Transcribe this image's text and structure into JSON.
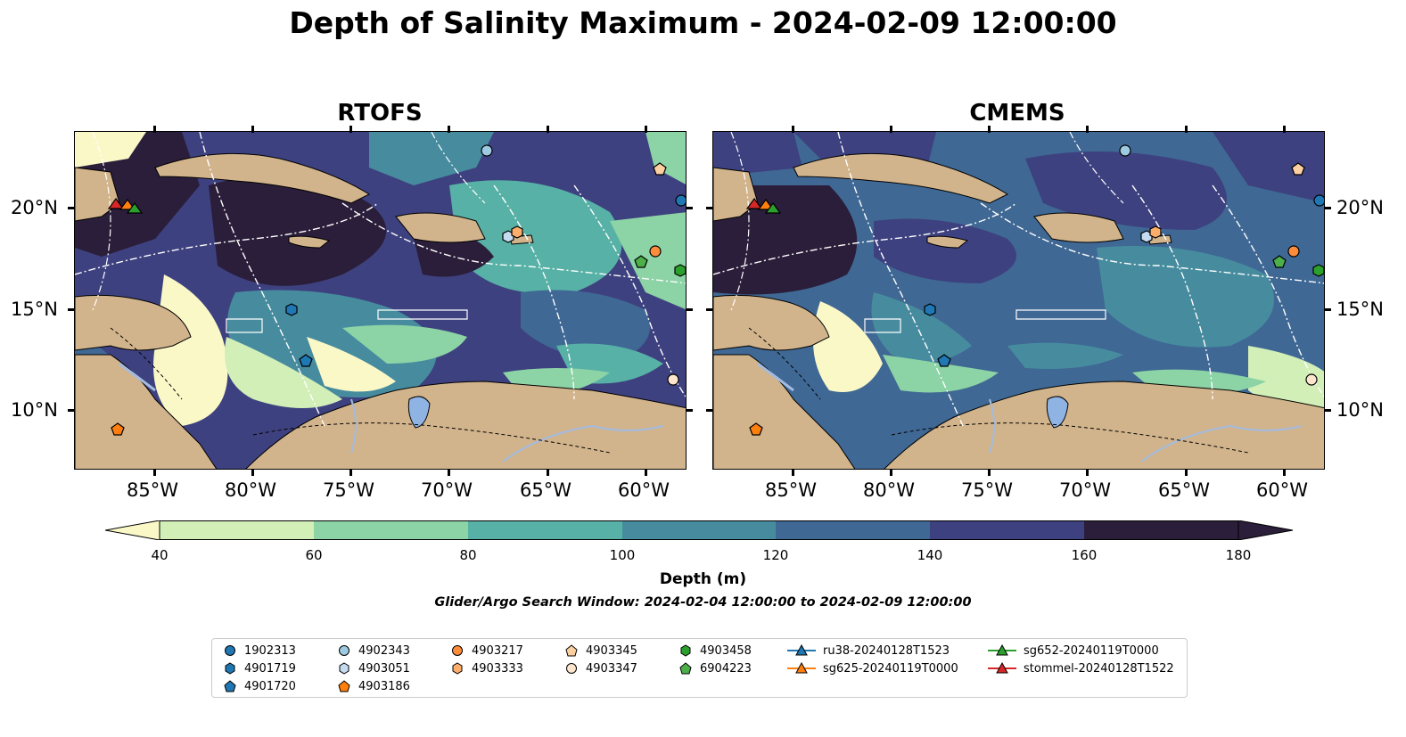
{
  "title": "Depth of Salinity Maximum - 2024-02-09 12:00:00",
  "panels": [
    {
      "title": "RTOFS"
    },
    {
      "title": "CMEMS"
    }
  ],
  "axes": {
    "lon_ticks": [
      "85°W",
      "80°W",
      "75°W",
      "70°W",
      "65°W",
      "60°W"
    ],
    "lat_ticks": [
      "20°N",
      "15°N",
      "10°N"
    ]
  },
  "colorbar": {
    "label": "Depth (m)",
    "ticks": [
      "40",
      "60",
      "80",
      "100",
      "120",
      "140",
      "160",
      "180"
    ],
    "colors": [
      "#fbf8c8",
      "#d2efb8",
      "#8cd3a6",
      "#57b1a6",
      "#468c9e",
      "#3f6894",
      "#3e417f",
      "#2a1e3a"
    ],
    "extend": "both"
  },
  "search_window": "Glider/Argo Search Window: 2024-02-04 12:00:00 to 2024-02-09 12:00:00",
  "legend": {
    "argo": [
      {
        "id": "1902313",
        "marker": "circle",
        "color": "#1f77b4"
      },
      {
        "id": "4901719",
        "marker": "hexagon",
        "color": "#1f77b4"
      },
      {
        "id": "4901720",
        "marker": "pentagon",
        "color": "#1f77b4"
      },
      {
        "id": "4902343",
        "marker": "circle",
        "color": "#9ecae1"
      },
      {
        "id": "4903051",
        "marker": "hexagon",
        "color": "#c6dbef"
      },
      {
        "id": "4903186",
        "marker": "pentagon",
        "color": "#ff7f0e"
      },
      {
        "id": "4903217",
        "marker": "circle",
        "color": "#fd8d3c"
      },
      {
        "id": "4903333",
        "marker": "hexagon",
        "color": "#fdae6b"
      },
      {
        "id": "4903345",
        "marker": "pentagon",
        "color": "#fdd0a2"
      },
      {
        "id": "4903347",
        "marker": "circle",
        "color": "#fee6ce"
      },
      {
        "id": "4903458",
        "marker": "hexagon",
        "color": "#2ca02c"
      },
      {
        "id": "6904223",
        "marker": "pentagon",
        "color": "#4daf4a"
      }
    ],
    "gliders": [
      {
        "id": "ru38-20240128T1523",
        "color": "#1f77b4"
      },
      {
        "id": "sg625-20240119T0000",
        "color": "#ff7f0e"
      },
      {
        "id": "sg652-20240119T0000",
        "color": "#2ca02c"
      },
      {
        "id": "stommel-20240128T1522",
        "color": "#d62728"
      }
    ]
  },
  "map_colors": {
    "land": "#d2b48c",
    "lake": "#8fb3e3",
    "river": "#a3bbe0"
  }
}
